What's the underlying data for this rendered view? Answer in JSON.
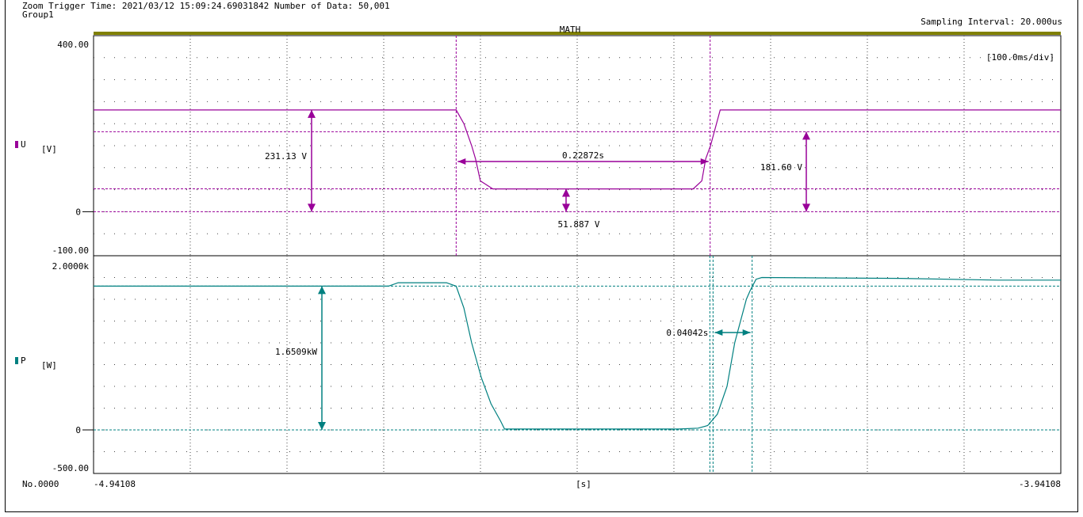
{
  "header": {
    "line1": "Zoom Trigger Time: 2021/03/12 15:09:24.69031842 Number of Data: 50,001",
    "group": "Group1",
    "sampling": "Sampling Interval:  20.000us",
    "math_tag": "MATH"
  },
  "timebase": "[100.0ms/div]",
  "footer": {
    "no": "No.0000",
    "x_start": "-4.94108",
    "x_unit": "[s]",
    "x_end": "-3.94108"
  },
  "colors": {
    "voltage": "#990099",
    "power": "#008080",
    "grid": "#444444",
    "math_bar": "#808000"
  },
  "chart_data": [
    {
      "type": "line",
      "channel": "U",
      "unit_label": "[V]",
      "ylim": [
        -100,
        400
      ],
      "ytick_top": "400.00",
      "ytick_zero": "0",
      "ytick_bottom": "-100.00",
      "x_range_s": [
        -4.94108,
        -3.94108
      ],
      "series": [
        {
          "x": [
            -4.94108,
            -4.5662,
            -4.5582,
            -4.5502,
            -4.5462,
            -4.5412,
            -4.5282,
            -4.3212,
            -4.3122,
            -4.3082,
            -4.3032,
            -4.2932,
            -3.94108
          ],
          "y": [
            231.13,
            231.13,
            200,
            150,
            120,
            70,
            51.887,
            51.887,
            70,
            120,
            150,
            231.13,
            231.13
          ]
        }
      ],
      "annotations": {
        "v_high": "231.13 V",
        "v_low": "51.887 V",
        "v_dip": "181.60 V",
        "dt": "0.22872s"
      }
    },
    {
      "type": "line",
      "channel": "P",
      "unit_label": "[W]",
      "ylim": [
        -500,
        2000
      ],
      "ytick_top": "2.0000k",
      "ytick_zero": "0",
      "ytick_bottom": "-500.00",
      "x_range_s": [
        -4.94108,
        -3.94108
      ],
      "series": [
        {
          "x": [
            -4.94108,
            -4.6362,
            -4.6262,
            -4.5762,
            -4.5662,
            -4.5582,
            -4.5502,
            -4.5402,
            -4.5302,
            -4.5202,
            -4.5162,
            -4.3362,
            -4.3162,
            -4.3062,
            -4.2962,
            -4.2862,
            -4.2782,
            -4.2662,
            -4.2622,
            -4.2562,
            -4.2502,
            -4.1062,
            -4.0062,
            -3.94108
          ],
          "y": [
            1651,
            1651,
            1690,
            1690,
            1650,
            1400,
            1000,
            600,
            300,
            100,
            10,
            10,
            20,
            50,
            180,
            500,
            1000,
            1500,
            1600,
            1730,
            1750,
            1740,
            1720,
            1720
          ]
        }
      ],
      "annotations": {
        "p_level": "1.6509kW",
        "dt": "0.04042s"
      }
    }
  ]
}
